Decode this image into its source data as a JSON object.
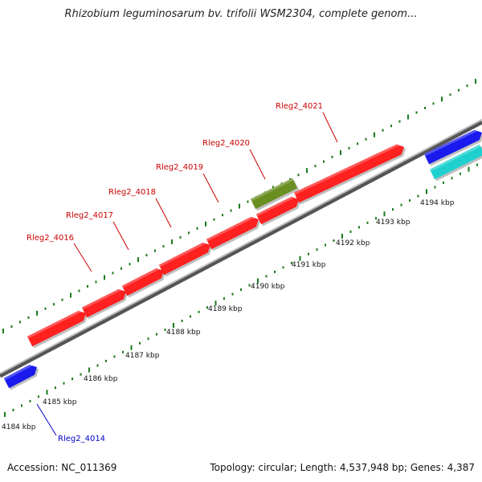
{
  "header": {
    "title": "Rhizobium leguminosarum bv. trifolii WSM2304, complete genom..."
  },
  "footer": {
    "accession": "Accession: NC_011369",
    "summary": "Topology: circular; Length: 4,537,948 bp; Genes: 4,387"
  },
  "scale_labels": [
    "4184 kbp",
    "4185 kbp",
    "4186 kbp",
    "4187 kbp",
    "4188 kbp",
    "4189 kbp",
    "4190 kbp",
    "4191 kbp",
    "4192 kbp",
    "4193 kbp",
    "4194 kbp"
  ],
  "genes": [
    {
      "label": "Rleg2_4016",
      "color": "#cc0000"
    },
    {
      "label": "Rleg2_4017",
      "color": "#cc0000"
    },
    {
      "label": "Rleg2_4018",
      "color": "#cc0000"
    },
    {
      "label": "Rleg2_4019",
      "color": "#cc0000"
    },
    {
      "label": "Rleg2_4020",
      "color": "#cc0000"
    },
    {
      "label": "Rleg2_4021",
      "color": "#cc0000"
    },
    {
      "label": "Rleg2_4014",
      "color": "#0000cc"
    }
  ],
  "colors": {
    "forward_gene": "#ff2020",
    "reverse_gene": "#1a1aee",
    "rna_gene": "#6b8e23",
    "other_gene": "#20d0d0",
    "tick": "#1a7a1a",
    "backbone": "#888888"
  }
}
